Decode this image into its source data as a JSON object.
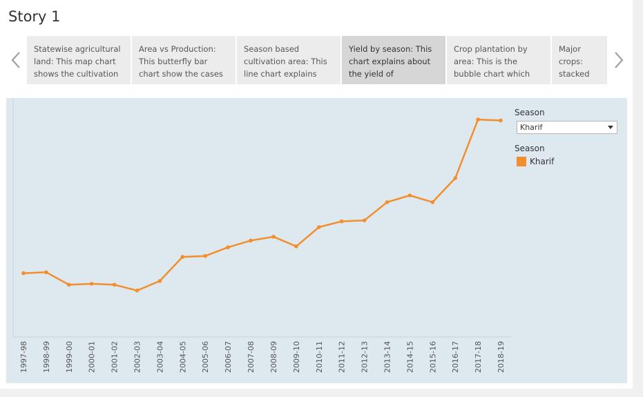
{
  "story": {
    "title": "Story 1"
  },
  "navigator": {
    "prev_icon": "chevron-left-icon",
    "next_icon": "chevron-right-icon",
    "points": [
      {
        "text": "Statewise agricultural land: This map chart shows the cultivation",
        "active": false
      },
      {
        "text": "Area vs Production: This butterfly bar chart show the cases",
        "active": false
      },
      {
        "text": "Season based cultivation area: This line chart explains",
        "active": false
      },
      {
        "text": "Yield by season: This chart explains about the yield of production",
        "active": true
      },
      {
        "text": "Crop plantation by area: This is the bubble chart which",
        "active": false
      },
      {
        "text": "Major crops: stacked bar show the cro",
        "active": false
      }
    ]
  },
  "filter": {
    "label": "Season",
    "selected": "Kharif"
  },
  "legend": {
    "title": "Season",
    "items": [
      {
        "label": "Kharif",
        "color": "#f28e2b"
      }
    ]
  },
  "chart_data": {
    "type": "line",
    "title": "",
    "xlabel": "",
    "ylabel": "",
    "x": [
      "1997-98",
      "1998-99",
      "1999-00",
      "2000-01",
      "2001-02",
      "2002-03",
      "2003-04",
      "2004-05",
      "2005-06",
      "2006-07",
      "2007-08",
      "2008-09",
      "2009-10",
      "2010-11",
      "2011-12",
      "2012-13",
      "2013-14",
      "2014-15",
      "2015-16",
      "2016-17",
      "2017-18",
      "2018-19"
    ],
    "series": [
      {
        "name": "Kharif",
        "color": "#f28e2b",
        "values": [
          212,
          213,
          200,
          201,
          200,
          194,
          204,
          229,
          230,
          239,
          246,
          250,
          240,
          260,
          266,
          267,
          286,
          293,
          286,
          311,
          372,
          371
        ]
      }
    ],
    "ylim": [
      150,
      380
    ],
    "grid": false,
    "legend_position": "right"
  }
}
